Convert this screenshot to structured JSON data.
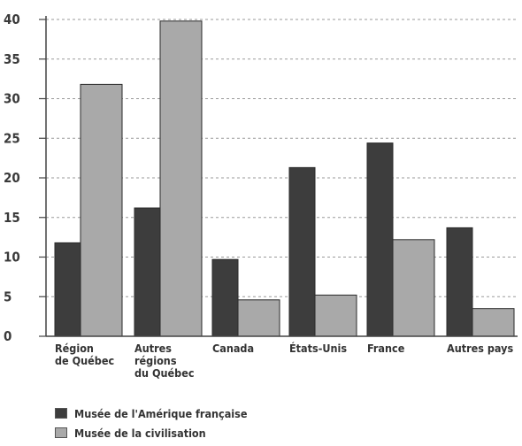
{
  "chart_data": {
    "type": "bar",
    "categories": [
      [
        "Région",
        "de Québec"
      ],
      [
        "Autres",
        "régions",
        "du Québec"
      ],
      [
        "Canada"
      ],
      [
        "États-Unis"
      ],
      [
        "France"
      ],
      [
        "Autres pays"
      ]
    ],
    "series": [
      {
        "name": "Musée de l'Amérique française",
        "values": [
          11.8,
          16.2,
          9.7,
          21.3,
          24.4,
          13.7
        ],
        "color": "#3d3d3d"
      },
      {
        "name": "Musée de la civilisation",
        "values": [
          31.8,
          39.8,
          4.6,
          5.2,
          12.2,
          3.5
        ],
        "color": "#a9a9a9"
      }
    ],
    "yticks": [
      0,
      5,
      10,
      15,
      20,
      25,
      30,
      35,
      40
    ],
    "ylim": [
      0,
      40
    ],
    "title": "",
    "xlabel": "",
    "ylabel": "",
    "grid": "horizontal dashed",
    "legend_position": "bottom-left"
  }
}
